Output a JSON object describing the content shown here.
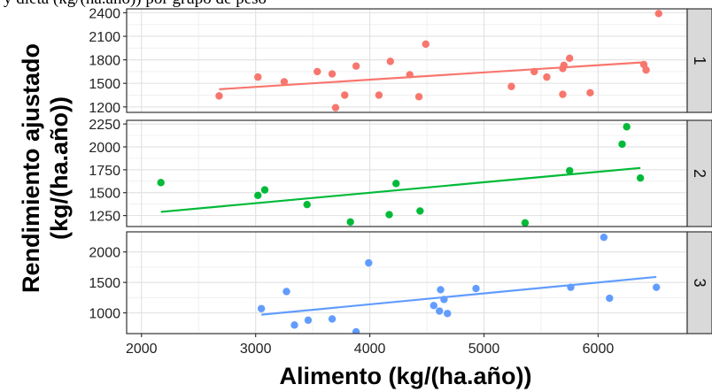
{
  "header_fragment": "y dieta (kg/(ha.año)) por grupo de peso",
  "chart_data": {
    "type": "scatter",
    "xlabel": "Alimento (kg/(ha.año))",
    "ylabel_line1": "Rendimiento ajustado",
    "ylabel_line2": "(kg/(ha.año))",
    "xlim": [
      1870,
      6780
    ],
    "xticks": [
      2000,
      3000,
      4000,
      5000,
      6000
    ],
    "grid": true,
    "panels": [
      {
        "strip": "1",
        "color": "#F8766D",
        "ylim": [
          1130,
          2450
        ],
        "yticks": [
          1200,
          1500,
          1800,
          2100,
          2400
        ],
        "points": [
          [
            2680,
            1340
          ],
          [
            3020,
            1580
          ],
          [
            3250,
            1520
          ],
          [
            3540,
            1650
          ],
          [
            3670,
            1620
          ],
          [
            3700,
            1190
          ],
          [
            3780,
            1350
          ],
          [
            3880,
            1720
          ],
          [
            4080,
            1350
          ],
          [
            4180,
            1780
          ],
          [
            4350,
            1610
          ],
          [
            4430,
            1330
          ],
          [
            4490,
            2000
          ],
          [
            5240,
            1460
          ],
          [
            5440,
            1650
          ],
          [
            5550,
            1580
          ],
          [
            5690,
            1360
          ],
          [
            5690,
            1690
          ],
          [
            5700,
            1730
          ],
          [
            5750,
            1820
          ],
          [
            5930,
            1380
          ],
          [
            6400,
            1740
          ],
          [
            6420,
            1670
          ],
          [
            6530,
            2390
          ]
        ],
        "fit": [
          [
            2680,
            1425
          ],
          [
            6420,
            1770
          ]
        ]
      },
      {
        "strip": "2",
        "color": "#00BA38",
        "ylim": [
          1130,
          2290
        ],
        "yticks": [
          1250,
          1500,
          1750,
          2000,
          2250
        ],
        "points": [
          [
            2170,
            1610
          ],
          [
            3020,
            1470
          ],
          [
            3080,
            1530
          ],
          [
            3450,
            1370
          ],
          [
            3830,
            1180
          ],
          [
            4170,
            1260
          ],
          [
            4230,
            1600
          ],
          [
            4440,
            1300
          ],
          [
            5360,
            1170
          ],
          [
            5750,
            1740
          ],
          [
            6210,
            2030
          ],
          [
            6250,
            2220
          ],
          [
            6370,
            1660
          ]
        ],
        "fit": [
          [
            2170,
            1290
          ],
          [
            6370,
            1770
          ]
        ]
      },
      {
        "strip": "3",
        "color": "#619CFF",
        "ylim": [
          660,
          2330
        ],
        "yticks": [
          1000,
          1500,
          2000
        ],
        "points": [
          [
            3050,
            1070
          ],
          [
            3270,
            1350
          ],
          [
            3340,
            800
          ],
          [
            3460,
            880
          ],
          [
            3670,
            900
          ],
          [
            3880,
            690
          ],
          [
            3990,
            1820
          ],
          [
            4560,
            1120
          ],
          [
            4610,
            1030
          ],
          [
            4620,
            1380
          ],
          [
            4650,
            1220
          ],
          [
            4680,
            990
          ],
          [
            4930,
            1400
          ],
          [
            5760,
            1420
          ],
          [
            6050,
            2240
          ],
          [
            6100,
            1240
          ],
          [
            6510,
            1420
          ]
        ],
        "fit": [
          [
            3050,
            970
          ],
          [
            6510,
            1590
          ]
        ]
      }
    ]
  }
}
